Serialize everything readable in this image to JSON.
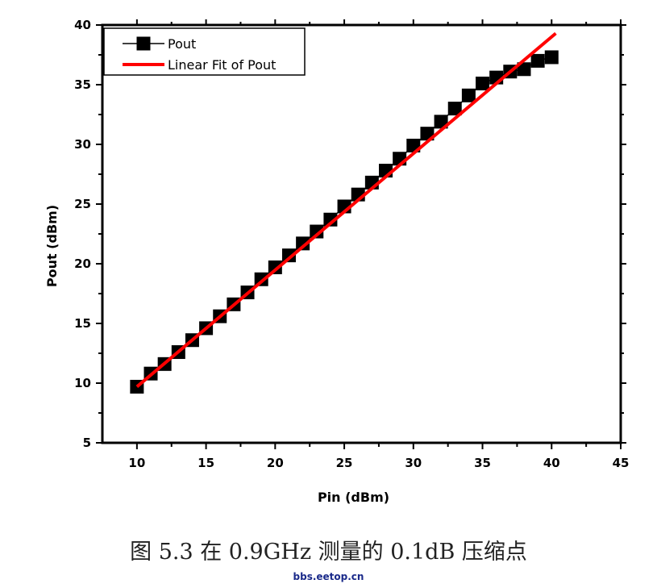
{
  "chart_data": {
    "type": "scatter",
    "xlabel": "Pin (dBm)",
    "ylabel": "Pout (dBm)",
    "xlim": [
      7.5,
      45
    ],
    "ylim": [
      5,
      40
    ],
    "xticks": [
      10,
      15,
      20,
      25,
      30,
      35,
      40,
      45
    ],
    "yticks": [
      5,
      10,
      15,
      20,
      25,
      30,
      35,
      40
    ],
    "grid": false,
    "legend_position": "top-left",
    "series": [
      {
        "name": "Pout",
        "kind": "line-with-square-markers",
        "color": "#000000",
        "x": [
          10,
          11,
          12,
          13,
          14,
          15,
          16,
          17,
          18,
          19,
          20,
          21,
          22,
          23,
          24,
          25,
          26,
          27,
          28,
          29,
          30,
          31,
          32,
          33,
          34,
          35,
          36,
          37,
          38,
          39,
          40
        ],
        "y": [
          9.7,
          10.8,
          11.6,
          12.6,
          13.6,
          14.6,
          15.6,
          16.6,
          17.6,
          18.7,
          19.7,
          20.7,
          21.7,
          22.7,
          23.7,
          24.8,
          25.8,
          26.8,
          27.8,
          28.8,
          29.9,
          30.9,
          31.9,
          33.0,
          34.1,
          35.1,
          35.6,
          36.1,
          36.3,
          37.0,
          37.3
        ]
      },
      {
        "name": "Linear Fit of Pout",
        "kind": "line",
        "color": "#ff0000",
        "x": [
          10,
          40.3
        ],
        "y": [
          9.7,
          39.3
        ]
      }
    ]
  },
  "caption": "图 5.3  在 0.9GHz 测量的 0.1dB 压缩点",
  "watermark": "bbs.eetop.cn"
}
